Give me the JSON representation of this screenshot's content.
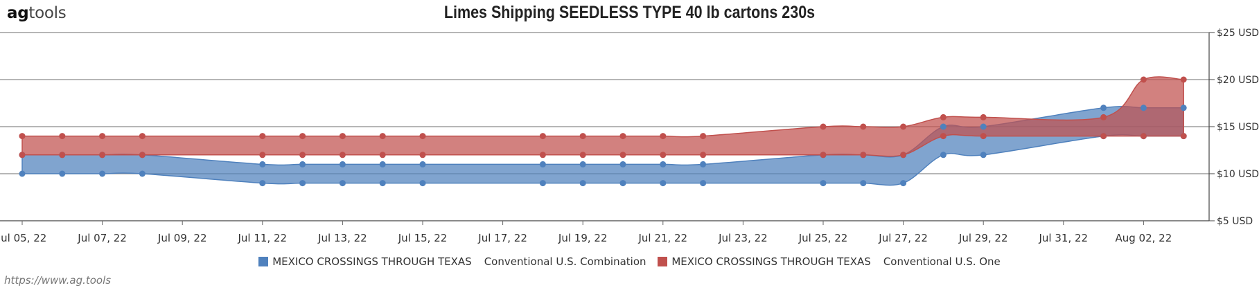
{
  "header": {
    "logo_bold": "ag",
    "logo_rest": "tools",
    "title": "Limes Shipping SEEDLESS TYPE 40 lb cartons 230s"
  },
  "credit": "https://www.ag.tools",
  "chart_data": {
    "type": "area",
    "title": "Limes Shipping SEEDLESS TYPE 40 lb cartons 230s",
    "x_ticks": [
      "Jul 05, 22",
      "Jul 07, 22",
      "Jul 09, 22",
      "Jul 11, 22",
      "Jul 13, 22",
      "Jul 15, 22",
      "Jul 17, 22",
      "Jul 19, 22",
      "Jul 21, 22",
      "Jul 23, 22",
      "Jul 25, 22",
      "Jul 27, 22",
      "Jul 29, 22",
      "Jul 31, 22",
      "Aug 02, 22"
    ],
    "y_ticks": [
      "$5 USD",
      "$10 USD",
      "$15 USD",
      "$20 USD",
      "$25 USD"
    ],
    "y_axis_side": "right",
    "ylim": [
      5,
      25
    ],
    "grid": true,
    "legend_position": "bottom",
    "series": [
      {
        "name": "MEXICO CROSSINGS THROUGH TEXAS",
        "source": "Conventional U.S. Combination",
        "color": "#4f81bd",
        "data": [
          {
            "x": "2022-07-05",
            "low": 10,
            "high": 12
          },
          {
            "x": "2022-07-06",
            "low": 10,
            "high": 12
          },
          {
            "x": "2022-07-07",
            "low": 10,
            "high": 12
          },
          {
            "x": "2022-07-08",
            "low": 10,
            "high": 12
          },
          {
            "x": "2022-07-11",
            "low": 9,
            "high": 11
          },
          {
            "x": "2022-07-12",
            "low": 9,
            "high": 11
          },
          {
            "x": "2022-07-13",
            "low": 9,
            "high": 11
          },
          {
            "x": "2022-07-14",
            "low": 9,
            "high": 11
          },
          {
            "x": "2022-07-15",
            "low": 9,
            "high": 11
          },
          {
            "x": "2022-07-18",
            "low": 9,
            "high": 11
          },
          {
            "x": "2022-07-19",
            "low": 9,
            "high": 11
          },
          {
            "x": "2022-07-20",
            "low": 9,
            "high": 11
          },
          {
            "x": "2022-07-21",
            "low": 9,
            "high": 11
          },
          {
            "x": "2022-07-22",
            "low": 9,
            "high": 11
          },
          {
            "x": "2022-07-25",
            "low": 9,
            "high": 12
          },
          {
            "x": "2022-07-26",
            "low": 9,
            "high": 12
          },
          {
            "x": "2022-07-27",
            "low": 9,
            "high": 12
          },
          {
            "x": "2022-07-28",
            "low": 12,
            "high": 15
          },
          {
            "x": "2022-07-29",
            "low": 12,
            "high": 15
          },
          {
            "x": "2022-08-01",
            "low": 14,
            "high": 17
          },
          {
            "x": "2022-08-02",
            "low": 14,
            "high": 17
          },
          {
            "x": "2022-08-03",
            "low": 14,
            "high": 17
          }
        ]
      },
      {
        "name": "MEXICO CROSSINGS THROUGH TEXAS",
        "source": "Conventional U.S. One",
        "color": "#c0504d",
        "data": [
          {
            "x": "2022-07-05",
            "low": 12,
            "high": 14
          },
          {
            "x": "2022-07-06",
            "low": 12,
            "high": 14
          },
          {
            "x": "2022-07-07",
            "low": 12,
            "high": 14
          },
          {
            "x": "2022-07-08",
            "low": 12,
            "high": 14
          },
          {
            "x": "2022-07-11",
            "low": 12,
            "high": 14
          },
          {
            "x": "2022-07-12",
            "low": 12,
            "high": 14
          },
          {
            "x": "2022-07-13",
            "low": 12,
            "high": 14
          },
          {
            "x": "2022-07-14",
            "low": 12,
            "high": 14
          },
          {
            "x": "2022-07-15",
            "low": 12,
            "high": 14
          },
          {
            "x": "2022-07-18",
            "low": 12,
            "high": 14
          },
          {
            "x": "2022-07-19",
            "low": 12,
            "high": 14
          },
          {
            "x": "2022-07-20",
            "low": 12,
            "high": 14
          },
          {
            "x": "2022-07-21",
            "low": 12,
            "high": 14
          },
          {
            "x": "2022-07-22",
            "low": 12,
            "high": 14
          },
          {
            "x": "2022-07-25",
            "low": 12,
            "high": 15
          },
          {
            "x": "2022-07-26",
            "low": 12,
            "high": 15
          },
          {
            "x": "2022-07-27",
            "low": 12,
            "high": 15
          },
          {
            "x": "2022-07-28",
            "low": 14,
            "high": 16
          },
          {
            "x": "2022-07-29",
            "low": 14,
            "high": 16
          },
          {
            "x": "2022-08-01",
            "low": 14,
            "high": 16
          },
          {
            "x": "2022-08-02",
            "low": 14,
            "high": 20
          },
          {
            "x": "2022-08-03",
            "low": 14,
            "high": 20
          }
        ]
      }
    ]
  }
}
